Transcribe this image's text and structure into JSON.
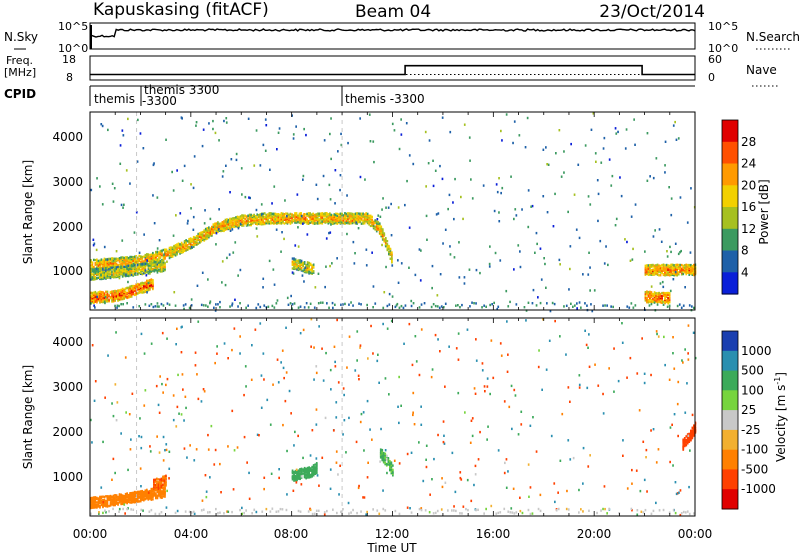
{
  "header": {
    "station": "Kapuskasing (fitACF)",
    "beam": "Beam 04",
    "date": "23/Oct/2014"
  },
  "noise_panel": {
    "left_label": "N.Sky",
    "left_ticks": [
      "10^5",
      "10^0"
    ],
    "right_ticks": [
      "10^5",
      "10^0"
    ],
    "right_label": "N.Search"
  },
  "freq_panel": {
    "left_label": "Freq.",
    "left_unit": "[MHz]",
    "left_ticks": [
      "18",
      "8"
    ],
    "right_ticks": [
      "60",
      "0"
    ],
    "right_label": "Nave",
    "freq_series_mhz": [
      [
        0,
        10.5
      ],
      [
        12.5,
        10.5
      ],
      [
        12.5,
        14.5
      ],
      [
        21.9,
        14.5
      ],
      [
        21.9,
        10.5
      ],
      [
        24,
        10.5
      ]
    ],
    "nave_series": [
      [
        0,
        15
      ],
      [
        24,
        15
      ]
    ]
  },
  "cpid_panel": {
    "label": "CPID",
    "segments": [
      {
        "start_ut": 0.0,
        "lines": [
          "themis",
          ""
        ]
      },
      {
        "start_ut": 1.85,
        "lines": [
          "themis 3300",
          "-3300"
        ]
      },
      {
        "start_ut": 10.0,
        "lines": [
          "themis -3300",
          ""
        ]
      }
    ]
  },
  "power_panel": {
    "ylabel": "Slant Range [km]",
    "yticks": [
      "4000",
      "3000",
      "2000",
      "1000"
    ],
    "colorbar_label": "Power [dB]",
    "colorbar_ticks": [
      "28",
      "24",
      "20",
      "16",
      "12",
      "8",
      "4"
    ],
    "colorbar_colors": [
      "#e00000",
      "#ff5000",
      "#ff9a00",
      "#f2d000",
      "#a6c020",
      "#3c9a60",
      "#1e60a8",
      "#0a1fd8"
    ]
  },
  "velocity_panel": {
    "ylabel": "Slant Range [km]",
    "yticks": [
      "4000",
      "3000",
      "2000",
      "1000"
    ],
    "colorbar_label": "Velocity [m s",
    "colorbar_label_sup": "-1",
    "colorbar_label_end": "]",
    "colorbar_ticks": [
      "1000",
      "500",
      "100",
      "25",
      "-25",
      "-100",
      "-500",
      "-1000"
    ],
    "colorbar_colors": [
      "#1a3fb0",
      "#2a8fb0",
      "#3caa5a",
      "#77d43e",
      "#c8c8c8",
      "#f2b030",
      "#ff8000",
      "#ff4000",
      "#e00000"
    ]
  },
  "xaxis": {
    "ticks": [
      "00:00",
      "04:00",
      "08:00",
      "12:00",
      "16:00",
      "20:00",
      "00:00"
    ],
    "label": "Time UT"
  },
  "chart_data": {
    "type": "heatmap",
    "title": "Kapuskasing (fitACF)",
    "subtitle": "Beam 04",
    "xlabel": "Time UT",
    "ylabel": "Slant Range [km]",
    "xlim_hours": [
      0,
      24
    ],
    "ylim_km": [
      180,
      4600
    ],
    "power_clim_db": [
      0,
      32
    ],
    "velocity_clim_ms": [
      -1000,
      1000
    ],
    "power_features": [
      {
        "t": [
          0.0,
          0.3,
          1.0,
          2.0,
          3.0,
          4.0,
          5.0,
          6.0,
          7.0,
          8.0,
          9.0,
          10.0,
          11.0,
          11.5,
          12.0
        ],
        "range_km": [
          1200,
          1220,
          1250,
          1300,
          1450,
          1700,
          2050,
          2200,
          2250,
          2250,
          2250,
          2250,
          2250,
          2000,
          1300
        ],
        "power_db": 22
      },
      {
        "t": [
          0.0,
          0.5,
          1.0,
          1.5,
          2.5
        ],
        "range_km": [
          480,
          500,
          520,
          600,
          800
        ],
        "power_db": 26
      },
      {
        "t": [
          0.0,
          0.5,
          1.0,
          1.5,
          2.0,
          2.5,
          3.0
        ],
        "range_km": [
          1000,
          1020,
          1050,
          1080,
          1120,
          1150,
          1200
        ],
        "power_db": 18
      },
      {
        "t": [
          8.0,
          8.3,
          8.6,
          8.9
        ],
        "range_km": [
          1250,
          1200,
          1150,
          1100
        ],
        "power_db": 20
      },
      {
        "t": [
          22.0,
          22.5,
          23.0,
          23.5,
          24.0
        ],
        "range_km": [
          1100,
          1100,
          1100,
          1100,
          1100
        ],
        "power_db": 24
      },
      {
        "t": [
          22.0,
          22.3,
          22.6,
          23.0
        ],
        "range_km": [
          500,
          490,
          480,
          470
        ],
        "power_db": 26
      }
    ],
    "velocity_features": [
      {
        "t": [
          0.0,
          0.5,
          1.0,
          2.0,
          3.0
        ],
        "range_km": [
          500,
          520,
          560,
          650,
          750
        ],
        "velocity_ms": -150
      },
      {
        "t": [
          2.5,
          2.8,
          3.0
        ],
        "range_km": [
          900,
          950,
          1000
        ],
        "velocity_ms": -300
      },
      {
        "t": [
          8.0,
          8.4,
          8.8,
          9.0
        ],
        "range_km": [
          1100,
          1150,
          1200,
          1300
        ],
        "velocity_ms": 150
      },
      {
        "t": [
          11.5,
          11.8,
          12.0
        ],
        "range_km": [
          1600,
          1400,
          1200
        ],
        "velocity_ms": 80
      },
      {
        "t": [
          23.5,
          23.8,
          24.0
        ],
        "range_km": [
          1800,
          2000,
          2200
        ],
        "velocity_ms": -600
      }
    ]
  }
}
